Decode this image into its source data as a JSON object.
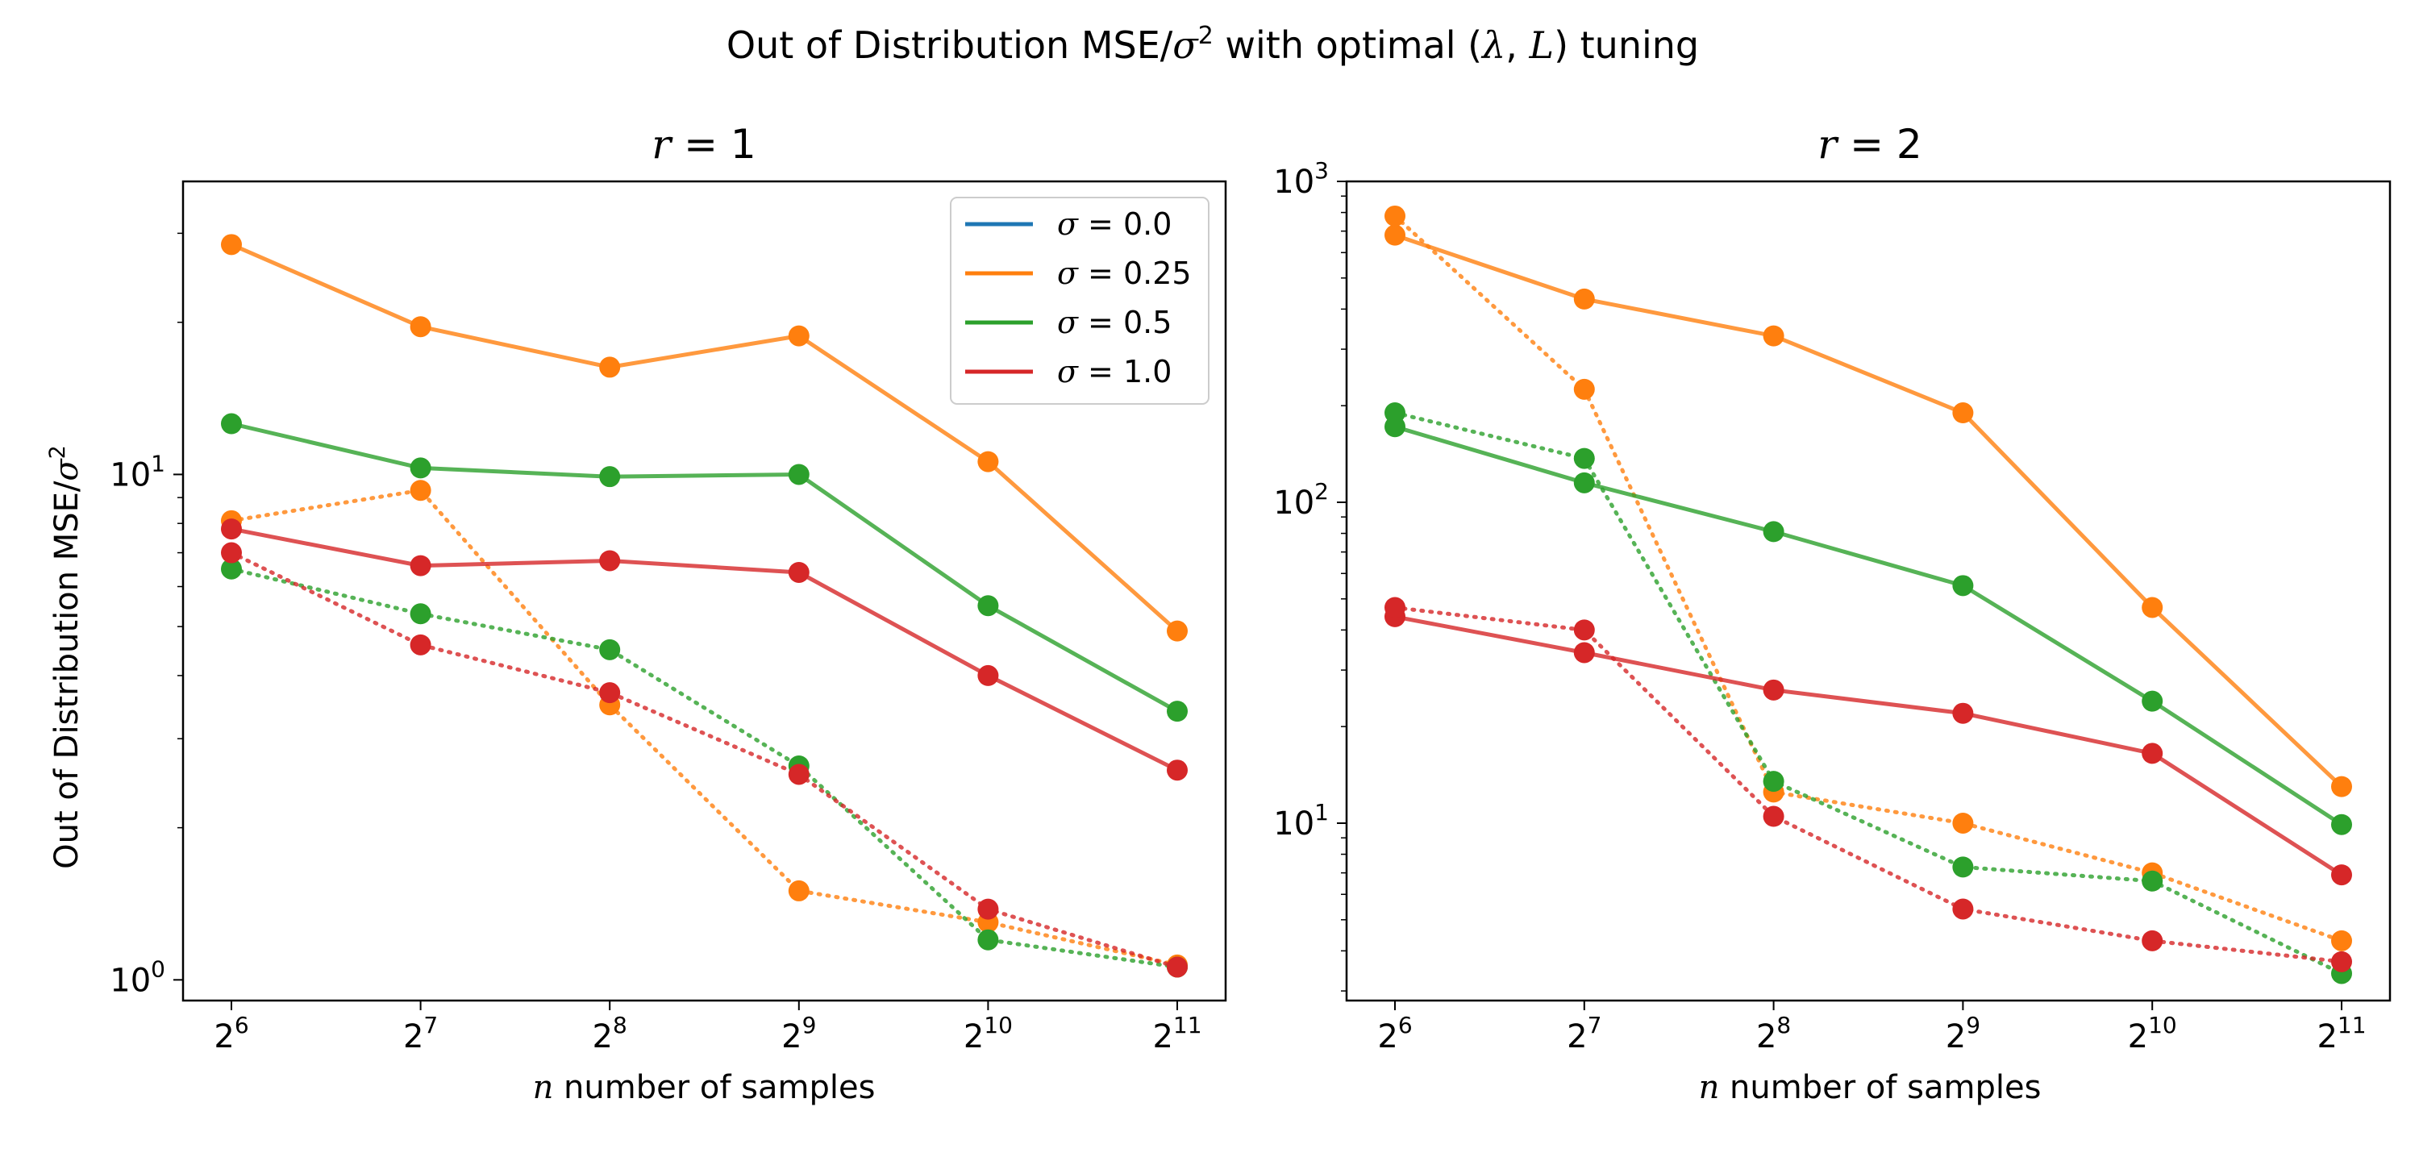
{
  "figure_title": {
    "pre": "Out of Distribution MSE/",
    "sigma": "σ",
    "exp": "2",
    "mid": " with optimal (",
    "lam": "λ",
    "comma": ", ",
    "L": "L",
    "post": ") tuning"
  },
  "colors": {
    "sigma_0_0": "#1f77b4",
    "sigma_0_25": "#ff7f0e",
    "sigma_0_5": "#2ca02c",
    "sigma_1_0": "#d62728"
  },
  "chart_data": [
    {
      "type": "line",
      "title": {
        "var": "r",
        "eq": " = ",
        "val": "1"
      },
      "xlabel": {
        "var": "n",
        "rest": " number of samples"
      },
      "ylabel": {
        "pre": "Out of Distribution MSE/",
        "sigma": "σ",
        "exp": "2"
      },
      "xscale": "log2",
      "yscale": "log",
      "x": [
        64,
        128,
        256,
        512,
        1024,
        2048
      ],
      "xticks": [
        {
          "base": "2",
          "exp": "6"
        },
        {
          "base": "2",
          "exp": "7"
        },
        {
          "base": "2",
          "exp": "8"
        },
        {
          "base": "2",
          "exp": "9"
        },
        {
          "base": "2",
          "exp": "10"
        },
        {
          "base": "2",
          "exp": "11"
        }
      ],
      "yticks": [
        {
          "base": "10",
          "exp": "0"
        },
        {
          "base": "10",
          "exp": "1"
        }
      ],
      "ylim": [
        0.91,
        38
      ],
      "grid": false,
      "legend": {
        "position": "upper right",
        "entries": [
          {
            "pre": "σ",
            "eq": " = ",
            "val": "0.0",
            "color": "#1f77b4"
          },
          {
            "pre": "σ",
            "eq": " = ",
            "val": "0.25",
            "color": "#ff7f0e"
          },
          {
            "pre": "σ",
            "eq": " = ",
            "val": "0.5",
            "color": "#2ca02c"
          },
          {
            "pre": "σ",
            "eq": " = ",
            "val": "1.0",
            "color": "#d62728"
          }
        ]
      },
      "series": [
        {
          "sigma": 0.25,
          "style": "solid",
          "color": "#ff7f0e",
          "values": [
            28.5,
            19.6,
            16.3,
            18.8,
            10.6,
            4.9
          ]
        },
        {
          "sigma": 0.25,
          "style": "dotted",
          "color": "#ff7f0e",
          "values": [
            8.1,
            9.3,
            3.5,
            1.5,
            1.3,
            1.07
          ]
        },
        {
          "sigma": 0.5,
          "style": "solid",
          "color": "#2ca02c",
          "values": [
            12.6,
            10.3,
            9.9,
            10.0,
            5.5,
            3.4
          ]
        },
        {
          "sigma": 0.5,
          "style": "dotted",
          "color": "#2ca02c",
          "values": [
            6.5,
            5.3,
            4.5,
            2.65,
            1.2,
            1.06
          ]
        },
        {
          "sigma": 1.0,
          "style": "solid",
          "color": "#d62728",
          "values": [
            7.8,
            6.6,
            6.75,
            6.4,
            4.0,
            2.6
          ]
        },
        {
          "sigma": 1.0,
          "style": "dotted",
          "color": "#d62728",
          "values": [
            7.0,
            4.6,
            3.7,
            2.55,
            1.38,
            1.06
          ]
        }
      ]
    },
    {
      "type": "line",
      "title": {
        "var": "r",
        "eq": " = ",
        "val": "2"
      },
      "xlabel": {
        "var": "n",
        "rest": " number of samples"
      },
      "xscale": "log2",
      "yscale": "log",
      "x": [
        64,
        128,
        256,
        512,
        1024,
        2048
      ],
      "xticks": [
        {
          "base": "2",
          "exp": "6"
        },
        {
          "base": "2",
          "exp": "7"
        },
        {
          "base": "2",
          "exp": "8"
        },
        {
          "base": "2",
          "exp": "9"
        },
        {
          "base": "2",
          "exp": "10"
        },
        {
          "base": "2",
          "exp": "11"
        }
      ],
      "yticks": [
        {
          "base": "10",
          "exp": "1"
        },
        {
          "base": "10",
          "exp": "2"
        },
        {
          "base": "10",
          "exp": "3"
        }
      ],
      "ylim": [
        2.8,
        1000
      ],
      "grid": false,
      "series": [
        {
          "sigma": 0.25,
          "style": "solid",
          "color": "#ff7f0e",
          "values": [
            680,
            430,
            330,
            190,
            47,
            13
          ]
        },
        {
          "sigma": 0.25,
          "style": "dotted",
          "color": "#ff7f0e",
          "values": [
            780,
            225,
            12.5,
            10.0,
            7.0,
            4.3
          ]
        },
        {
          "sigma": 0.5,
          "style": "solid",
          "color": "#2ca02c",
          "values": [
            172,
            115,
            81,
            55,
            24,
            9.9
          ]
        },
        {
          "sigma": 0.5,
          "style": "dotted",
          "color": "#2ca02c",
          "values": [
            190,
            137,
            13.5,
            7.3,
            6.6,
            3.4
          ]
        },
        {
          "sigma": 1.0,
          "style": "solid",
          "color": "#d62728",
          "values": [
            44,
            34,
            26,
            22,
            16.5,
            6.9
          ]
        },
        {
          "sigma": 1.0,
          "style": "dotted",
          "color": "#d62728",
          "values": [
            47,
            40,
            10.5,
            5.4,
            4.3,
            3.7
          ]
        }
      ]
    }
  ]
}
